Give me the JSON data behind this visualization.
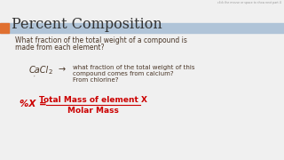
{
  "title": "Percent Composition",
  "bg_color": "#f0f0f0",
  "title_color": "#333333",
  "body_color": "#4a3728",
  "red_color": "#cc0000",
  "header_bar_color": "#b0c4d8",
  "orange_bar_color": "#e07030",
  "bullet_text_1": "What fraction of the total weight of a compound is",
  "bullet_text_2": "made from each element?",
  "formula_main": "CaCl",
  "formula_sub": "2",
  "arrow": "→",
  "right_text_line1": "what fraction of the total weight of this",
  "right_text_line2": "compound comes from calcium?",
  "right_text_line3": "From chlorine?",
  "percent_left": "%X =",
  "fraction_top": "Total Mass of element X",
  "fraction_bottom": "Molar Mass",
  "top_right_text": "click the mouse or space to show next part 4"
}
